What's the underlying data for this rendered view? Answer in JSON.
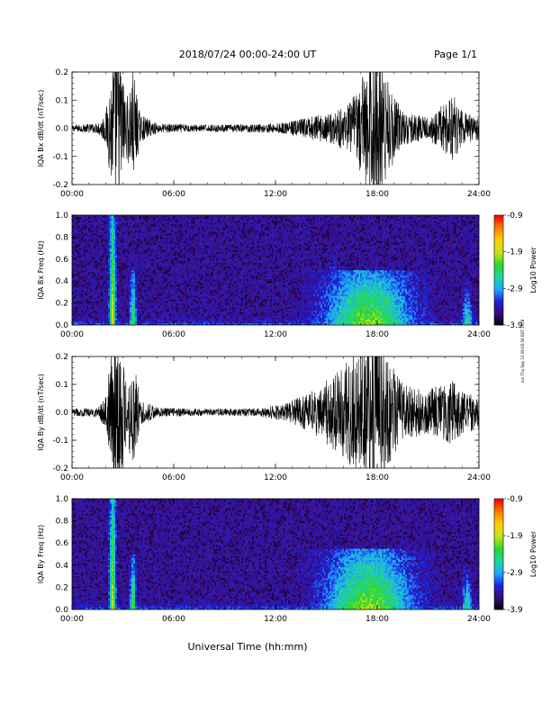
{
  "header": {
    "title": "2018/07/24  00:00-24:00 UT",
    "page": "Page 1/1"
  },
  "footer": {
    "xlabel": "Universal Time (hh:mm)",
    "stamp": "run Thu Sep 13 09:05:56 EDT 2018"
  },
  "colors": {
    "trace": "#000000",
    "spectrogram_bg": "#3a1a9c",
    "colormap": [
      "#000000",
      "#3b0a78",
      "#1e22d8",
      "#1ea8ff",
      "#20d4a0",
      "#2cd62c",
      "#c8e21c",
      "#ffd000",
      "#ff8000",
      "#ff0000"
    ]
  },
  "chart_data": [
    {
      "type": "line",
      "ylabel": "IQA Bx dB/dt (nT/sec)",
      "x_ticks": [
        "00:00",
        "06:00",
        "12:00",
        "18:00",
        "24:00"
      ],
      "y_ticks": [
        "0.2",
        "0.1",
        "0.0",
        "-0.1",
        "-0.2"
      ],
      "xlim": [
        0,
        24
      ],
      "ylim": [
        -0.2,
        0.2
      ],
      "activity_envelope": [
        {
          "t": 0.0,
          "amp": 0.012
        },
        {
          "t": 1.5,
          "amp": 0.018
        },
        {
          "t": 2.0,
          "amp": 0.06
        },
        {
          "t": 2.5,
          "amp": 0.3
        },
        {
          "t": 2.8,
          "amp": 0.3
        },
        {
          "t": 3.2,
          "amp": 0.1
        },
        {
          "t": 3.6,
          "amp": 0.22
        },
        {
          "t": 4.0,
          "amp": 0.05
        },
        {
          "t": 5.0,
          "amp": 0.018
        },
        {
          "t": 8.0,
          "amp": 0.012
        },
        {
          "t": 11.0,
          "amp": 0.015
        },
        {
          "t": 12.5,
          "amp": 0.02
        },
        {
          "t": 14.0,
          "amp": 0.04
        },
        {
          "t": 15.5,
          "amp": 0.06
        },
        {
          "t": 16.5,
          "amp": 0.1
        },
        {
          "t": 17.3,
          "amp": 0.22
        },
        {
          "t": 18.0,
          "amp": 0.28
        },
        {
          "t": 18.6,
          "amp": 0.18
        },
        {
          "t": 19.5,
          "amp": 0.06
        },
        {
          "t": 21.0,
          "amp": 0.04
        },
        {
          "t": 22.5,
          "amp": 0.12
        },
        {
          "t": 23.0,
          "amp": 0.06
        },
        {
          "t": 24.0,
          "amp": 0.04
        }
      ]
    },
    {
      "type": "heatmap",
      "ylabel": "IQA Bx Freq (Hz)",
      "x_ticks": [
        "00:00",
        "06:00",
        "12:00",
        "18:00",
        "24:00"
      ],
      "y_ticks": [
        "1.0",
        "0.8",
        "0.6",
        "0.4",
        "0.2",
        "0.0"
      ],
      "xlim": [
        0,
        24
      ],
      "ylim": [
        0.0,
        1.0
      ],
      "colorbar": {
        "label": "Log10 Power",
        "ticks": [
          "-0.9",
          "-1.9",
          "-2.9",
          "-3.9"
        ],
        "range": [
          -3.9,
          -0.9
        ]
      },
      "features": [
        {
          "t": 2.4,
          "width_hr": 0.15,
          "fmax": 1.0,
          "power": -1.8
        },
        {
          "t": 3.6,
          "width_hr": 0.2,
          "fmax": 0.5,
          "power": -2.2
        },
        {
          "t": 15.2,
          "width_hr": 0.05,
          "fmax": 1.0,
          "power": -2.4
        },
        {
          "t": 15.5,
          "width_hr": 0.1,
          "fmax": 0.9,
          "power": -2.6
        },
        {
          "t": 17.5,
          "width_hr": 2.5,
          "fmax": 0.5,
          "power": -2.0
        },
        {
          "t": 23.3,
          "width_hr": 0.4,
          "fmax": 0.4,
          "power": -2.5
        }
      ]
    },
    {
      "type": "line",
      "ylabel": "IQA By dB/dt (nT/sec)",
      "x_ticks": [
        "00:00",
        "06:00",
        "12:00",
        "18:00",
        "24:00"
      ],
      "y_ticks": [
        "0.2",
        "0.1",
        "0.0",
        "-0.1",
        "-0.2"
      ],
      "xlim": [
        0,
        24
      ],
      "ylim": [
        -0.2,
        0.2
      ],
      "activity_envelope": [
        {
          "t": 0.0,
          "amp": 0.012
        },
        {
          "t": 1.5,
          "amp": 0.018
        },
        {
          "t": 2.0,
          "amp": 0.06
        },
        {
          "t": 2.5,
          "amp": 0.3
        },
        {
          "t": 2.8,
          "amp": 0.3
        },
        {
          "t": 3.2,
          "amp": 0.1
        },
        {
          "t": 3.6,
          "amp": 0.22
        },
        {
          "t": 4.0,
          "amp": 0.05
        },
        {
          "t": 5.0,
          "amp": 0.018
        },
        {
          "t": 8.0,
          "amp": 0.012
        },
        {
          "t": 11.0,
          "amp": 0.015
        },
        {
          "t": 12.5,
          "amp": 0.03
        },
        {
          "t": 14.0,
          "amp": 0.07
        },
        {
          "t": 15.5,
          "amp": 0.14
        },
        {
          "t": 16.5,
          "amp": 0.2
        },
        {
          "t": 17.3,
          "amp": 0.28
        },
        {
          "t": 18.0,
          "amp": 0.3
        },
        {
          "t": 18.6,
          "amp": 0.2
        },
        {
          "t": 19.5,
          "amp": 0.1
        },
        {
          "t": 21.0,
          "amp": 0.08
        },
        {
          "t": 22.5,
          "amp": 0.12
        },
        {
          "t": 23.0,
          "amp": 0.08
        },
        {
          "t": 24.0,
          "amp": 0.06
        }
      ]
    },
    {
      "type": "heatmap",
      "ylabel": "IQA By Freq (Hz)",
      "x_ticks": [
        "00:00",
        "06:00",
        "12:00",
        "18:00",
        "24:00"
      ],
      "y_ticks": [
        "1.0",
        "0.8",
        "0.6",
        "0.4",
        "0.2",
        "0.0"
      ],
      "xlim": [
        0,
        24
      ],
      "ylim": [
        0.0,
        1.0
      ],
      "colorbar": {
        "label": "Log10 Power",
        "ticks": [
          "-0.9",
          "-1.9",
          "-2.9",
          "-3.9"
        ],
        "range": [
          -3.9,
          -0.9
        ]
      },
      "features": [
        {
          "t": 2.4,
          "width_hr": 0.15,
          "fmax": 1.0,
          "power": -1.8
        },
        {
          "t": 3.6,
          "width_hr": 0.2,
          "fmax": 0.5,
          "power": -2.2
        },
        {
          "t": 15.2,
          "width_hr": 0.05,
          "fmax": 1.0,
          "power": -2.4
        },
        {
          "t": 15.6,
          "width_hr": 0.1,
          "fmax": 0.9,
          "power": -2.6
        },
        {
          "t": 17.5,
          "width_hr": 2.5,
          "fmax": 0.55,
          "power": -2.0
        },
        {
          "t": 23.3,
          "width_hr": 0.4,
          "fmax": 0.4,
          "power": -2.5
        }
      ]
    }
  ]
}
